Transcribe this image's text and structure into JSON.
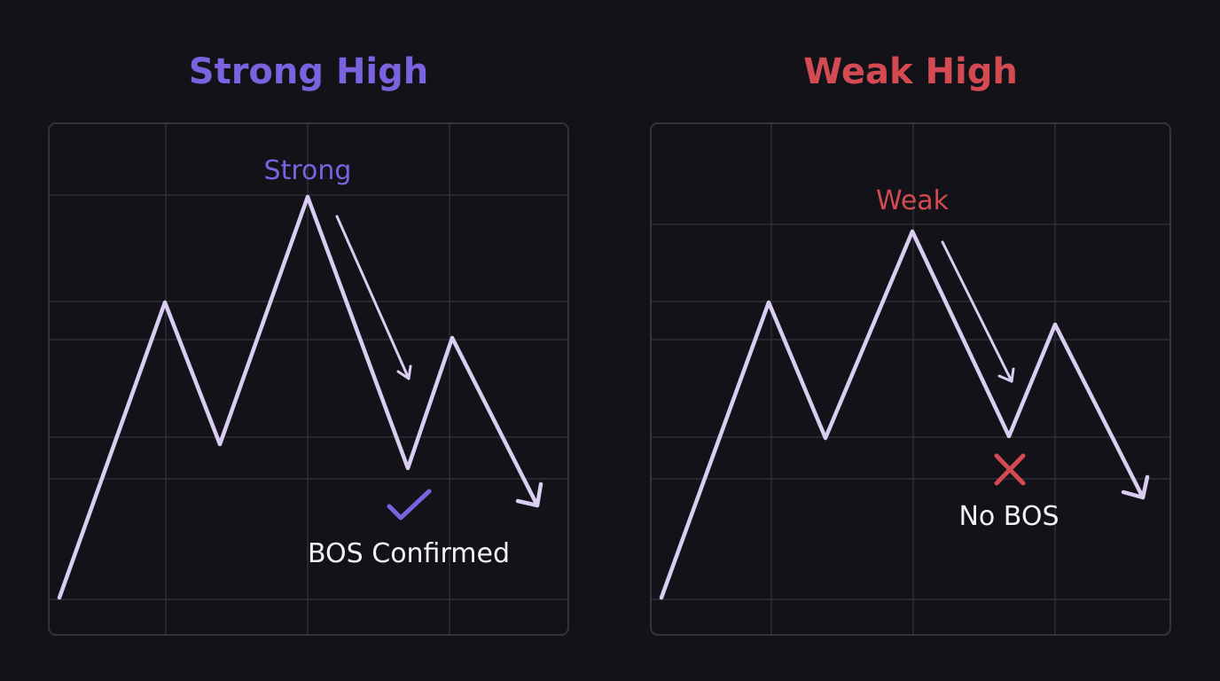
{
  "colors": {
    "background": "#121218",
    "frame": "#33333d",
    "grid": "#2e2e37",
    "line": "#d9cdf2",
    "strong": "#7b62df",
    "weak": "#d44a52",
    "status_text": "#f2f2f5"
  },
  "panels": [
    {
      "title": "Strong High",
      "peak_label": "Strong",
      "status_label": "BOS Confirmed",
      "status_icon": "check-icon"
    },
    {
      "title": "Weak High",
      "peak_label": "Weak",
      "status_label": "No BOS",
      "status_icon": "cross-icon"
    }
  ]
}
